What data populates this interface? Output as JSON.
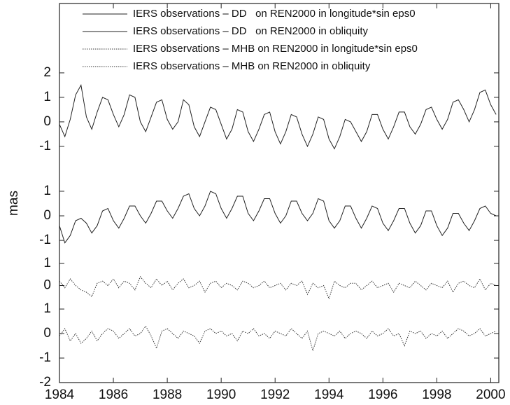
{
  "chart_data": {
    "type": "line",
    "ylabel": "mas",
    "x": [
      1984,
      1984.2,
      1984.4,
      1984.6,
      1984.8,
      1985,
      1985.2,
      1985.4,
      1985.6,
      1985.8,
      1986,
      1986.2,
      1986.4,
      1986.6,
      1986.8,
      1987,
      1987.2,
      1987.4,
      1987.6,
      1987.8,
      1988,
      1988.2,
      1988.4,
      1988.6,
      1988.8,
      1989,
      1989.2,
      1989.4,
      1989.6,
      1989.8,
      1990,
      1990.2,
      1990.4,
      1990.6,
      1990.8,
      1991,
      1991.2,
      1991.4,
      1991.6,
      1991.8,
      1992,
      1992.2,
      1992.4,
      1992.6,
      1992.8,
      1993,
      1993.2,
      1993.4,
      1993.6,
      1993.8,
      1994,
      1994.2,
      1994.4,
      1994.6,
      1994.8,
      1995,
      1995.2,
      1995.4,
      1995.6,
      1995.8,
      1996,
      1996.2,
      1996.4,
      1996.6,
      1996.8,
      1997,
      1997.2,
      1997.4,
      1997.6,
      1997.8,
      1998,
      1998.2,
      1998.4,
      1998.6,
      1998.8,
      1999,
      1999.2,
      1999.4,
      1999.6,
      1999.8,
      2000,
      2000.2
    ],
    "xlim": [
      1984,
      2000.3
    ],
    "xticks": [
      1984,
      1986,
      1988,
      1990,
      1992,
      1994,
      1996,
      1998,
      2000
    ],
    "series": [
      {
        "name": "IERS observations – DD   on REN2000 in longitude*sin eps0",
        "color": "#222222",
        "style": "solid",
        "ylim": [
          -1.89,
          4.83
        ],
        "yticks": [
          2,
          1,
          0,
          -1
        ],
        "values": [
          -0.1,
          -0.6,
          0.1,
          1.1,
          1.5,
          0.2,
          -0.3,
          0.4,
          1.0,
          0.9,
          0.3,
          -0.2,
          0.3,
          1.1,
          1.0,
          0.0,
          -0.4,
          0.2,
          0.8,
          0.9,
          0.1,
          -0.3,
          0.0,
          0.9,
          0.7,
          -0.2,
          -0.6,
          0.0,
          0.6,
          0.5,
          -0.1,
          -0.7,
          -0.3,
          0.5,
          0.4,
          -0.4,
          -0.8,
          -0.3,
          0.3,
          0.4,
          -0.4,
          -0.9,
          -0.4,
          0.3,
          0.2,
          -0.5,
          -1.0,
          -0.5,
          0.2,
          0.1,
          -0.7,
          -1.1,
          -0.6,
          0.1,
          0.0,
          -0.4,
          -0.8,
          -0.4,
          0.3,
          0.3,
          -0.3,
          -0.7,
          -0.2,
          0.4,
          0.4,
          -0.2,
          -0.5,
          -0.1,
          0.5,
          0.6,
          0.1,
          -0.3,
          0.1,
          0.8,
          0.9,
          0.5,
          0.0,
          0.5,
          1.2,
          1.3,
          0.7,
          0.3
        ]
      },
      {
        "name": "IERS observations – DD   on REN2000 in obliquity",
        "color": "#222222",
        "style": "solid",
        "ylim": [
          -1.91,
          1.94
        ],
        "yticks": [
          1,
          0,
          -1
        ],
        "values": [
          -0.4,
          -1.1,
          -0.8,
          -0.2,
          -0.1,
          -0.3,
          -0.7,
          -0.4,
          0.2,
          0.3,
          -0.2,
          -0.5,
          -0.1,
          0.4,
          0.4,
          0.0,
          -0.3,
          0.1,
          0.6,
          0.6,
          0.2,
          -0.1,
          0.3,
          0.8,
          0.9,
          0.3,
          0.0,
          0.4,
          1.0,
          0.9,
          0.3,
          -0.1,
          0.3,
          0.8,
          0.8,
          0.1,
          -0.2,
          0.2,
          0.7,
          0.7,
          0.1,
          -0.3,
          0.0,
          0.6,
          0.6,
          0.1,
          -0.2,
          0.1,
          0.7,
          0.6,
          -0.2,
          -0.5,
          -0.2,
          0.4,
          0.4,
          -0.1,
          -0.5,
          -0.1,
          0.4,
          0.3,
          -0.3,
          -0.6,
          -0.2,
          0.3,
          0.3,
          -0.3,
          -0.7,
          -0.4,
          0.2,
          0.2,
          -0.4,
          -0.8,
          -0.5,
          0.1,
          0.1,
          -0.3,
          -0.6,
          -0.2,
          0.3,
          0.4,
          0.1,
          0.0
        ]
      },
      {
        "name": "IERS observations – MHB on REN2000 in longitude*sin eps0",
        "color": "#333333",
        "style": "dotted",
        "ylim": [
          -1.03,
          1.03
        ],
        "yticks": [
          1,
          0
        ],
        "values": [
          0.2,
          -0.1,
          0.3,
          0.0,
          -0.2,
          -0.3,
          -0.5,
          0.1,
          0.2,
          0.0,
          0.3,
          -0.1,
          0.2,
          0.1,
          -0.2,
          0.4,
          0.1,
          -0.1,
          0.3,
          0.0,
          0.2,
          -0.2,
          0.1,
          0.3,
          -0.1,
          0.0,
          0.2,
          -0.3,
          0.1,
          0.2,
          -0.1,
          0.1,
          0.0,
          -0.2,
          0.2,
          0.1,
          -0.1,
          0.0,
          0.2,
          -0.1,
          0.0,
          0.1,
          -0.2,
          0.1,
          0.0,
          0.2,
          -0.4,
          0.1,
          -0.1,
          0.0,
          -0.6,
          0.2,
          0.0,
          -0.1,
          0.1,
          0.1,
          -0.2,
          0.0,
          0.2,
          -0.1,
          0.0,
          0.1,
          -0.3,
          0.1,
          0.0,
          -0.1,
          0.2,
          0.0,
          -0.2,
          0.1,
          0.0,
          -0.1,
          0.2,
          -0.3,
          0.1,
          0.2,
          0.0,
          -0.1,
          0.3,
          -0.2,
          0.1,
          0.0
        ]
      },
      {
        "name": "IERS observations – MHB on REN2000 in obliquity",
        "color": "#333333",
        "style": "dotted",
        "ylim": [
          -2,
          1.03
        ],
        "yticks": [
          1,
          0,
          -1,
          -2
        ],
        "values": [
          -0.1,
          0.2,
          -0.3,
          0.0,
          -0.4,
          -0.2,
          0.1,
          -0.3,
          0.0,
          0.2,
          0.1,
          -0.2,
          0.0,
          0.2,
          -0.1,
          0.0,
          0.3,
          -0.1,
          -0.6,
          0.1,
          0.2,
          0.0,
          -0.2,
          0.1,
          0.0,
          -0.1,
          -0.4,
          0.1,
          0.2,
          0.0,
          0.1,
          -0.1,
          0.0,
          -0.3,
          0.1,
          0.0,
          0.2,
          -0.1,
          0.0,
          -0.2,
          0.1,
          0.0,
          -0.1,
          0.2,
          0.0,
          -0.2,
          0.1,
          -0.7,
          0.0,
          0.1,
          0.0,
          -0.1,
          0.1,
          -0.2,
          0.0,
          0.1,
          0.0,
          -0.2,
          0.1,
          -0.1,
          0.0,
          0.2,
          -0.1,
          0.0,
          -0.5,
          0.1,
          0.0,
          0.1,
          -0.2,
          0.0,
          -0.1,
          0.1,
          -0.2,
          0.0,
          0.2,
          0.1,
          -0.1,
          0.0,
          0.2,
          -0.1,
          0.0,
          0.1
        ]
      }
    ]
  }
}
